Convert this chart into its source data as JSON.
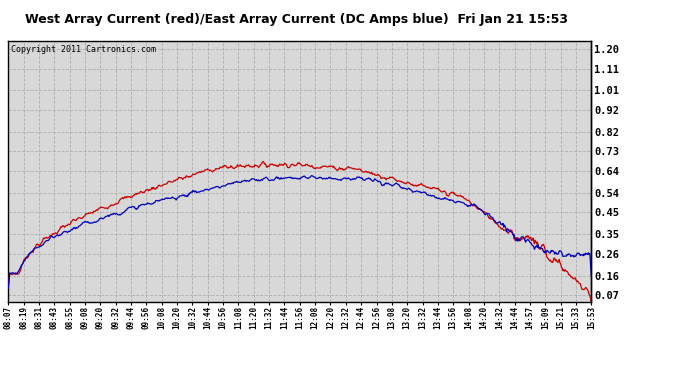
{
  "title": "West Array Current (red)/East Array Current (DC Amps blue)  Fri Jan 21 15:53",
  "copyright_text": "Copyright 2011 Cartronics.com",
  "background_color": "#ffffff",
  "plot_bg_color": "#d8d8d8",
  "grid_color": "#aaaaaa",
  "red_color": "#cc0000",
  "blue_color": "#0000bb",
  "yticks": [
    0.07,
    0.16,
    0.26,
    0.35,
    0.45,
    0.54,
    0.64,
    0.73,
    0.82,
    0.92,
    1.01,
    1.11,
    1.2
  ],
  "ylim": [
    0.04,
    1.235
  ],
  "xtick_labels": [
    "08:07",
    "08:19",
    "08:31",
    "08:43",
    "08:55",
    "09:08",
    "09:20",
    "09:32",
    "09:44",
    "09:56",
    "10:08",
    "10:20",
    "10:32",
    "10:44",
    "10:56",
    "11:08",
    "11:20",
    "11:32",
    "11:44",
    "11:56",
    "12:08",
    "12:20",
    "12:32",
    "12:44",
    "12:56",
    "13:08",
    "13:20",
    "13:32",
    "13:44",
    "13:56",
    "14:08",
    "14:20",
    "14:32",
    "14:44",
    "14:57",
    "15:09",
    "15:21",
    "15:33",
    "15:53"
  ],
  "n_points": 800
}
